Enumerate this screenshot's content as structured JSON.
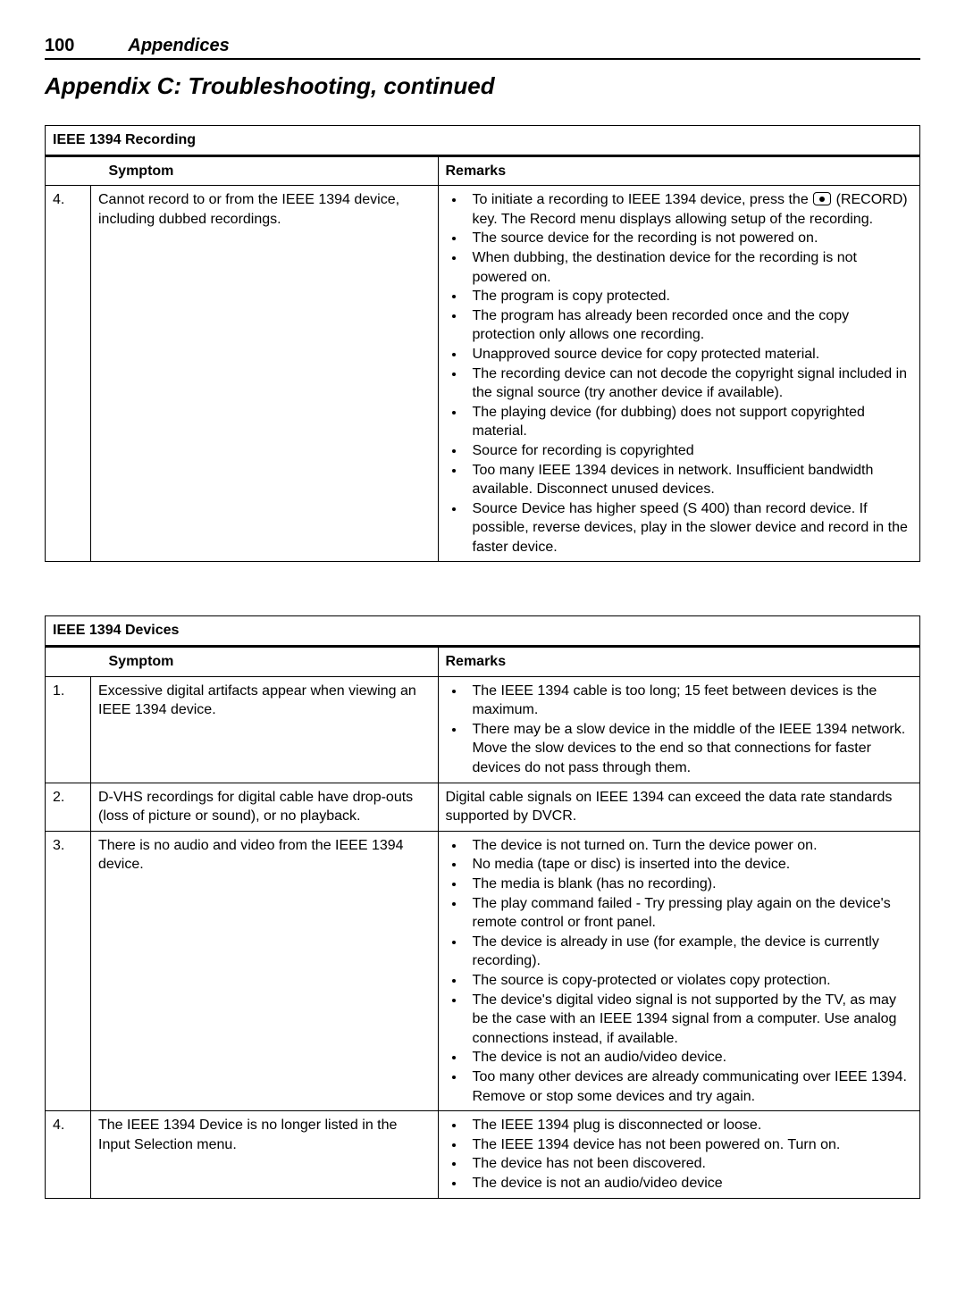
{
  "header": {
    "page_number": "100",
    "section": "Appendices"
  },
  "title": "Appendix C:   Troubleshooting, continued",
  "tables": [
    {
      "caption": "IEEE 1394 Recording",
      "col_symptom": "Symptom",
      "col_remarks": "Remarks",
      "rows": [
        {
          "num": "4.",
          "symptom": "Cannot record to or from the IEEE 1394 device, including dubbed recordings.",
          "remarks_pre_icon": "To initiate a recording to IEEE 1394 device, press the ",
          "remarks_post_icon": " (RECORD) key.  The Record menu displays allowing setup of the recording.",
          "remarks_rest": [
            "The source device for the recording is not powered on.",
            "When dubbing, the destination device for the recording is not powered on.",
            "The program is copy protected.",
            "The program has already been recorded once and the copy protection only allows one recording.",
            "Unapproved source device for copy protected material.",
            "The recording device can not decode the copyright signal included in the signal source (try another device if available).",
            "The playing device (for dubbing) does not support copy­righted material.",
            "Source for recording is copyrighted",
            "Too many IEEE 1394 devices in network. Insufficient band­width available.  Disconnect unused devices.",
            "Source Device has higher speed (S 400) than record device. If possible, reverse devices, play in the slower device and record in the faster device."
          ]
        }
      ]
    },
    {
      "caption": "IEEE 1394 Devices",
      "col_symptom": "Symptom",
      "col_remarks": "Remarks",
      "rows": [
        {
          "num": "1.",
          "symptom": "Excessive digital artifacts appear when viewing an IEEE 1394 device.",
          "remarks": [
            "The IEEE 1394 cable is too long; 15 feet between devices is the maximum.",
            "There may be a slow device in the middle of the IEEE 1394 network.  Move the slow devices to the end so that connec­tions for faster devices do not pass through them."
          ]
        },
        {
          "num": "2.",
          "symptom": "D-VHS recordings for digital cable have drop-outs (loss of picture or sound), or no playback.",
          "remarks_plain": "Digital cable signals on IEEE 1394 can exceed the data rate stan­dards supported by DVCR."
        },
        {
          "num": "3.",
          "symptom": "There is no audio and video from the IEEE 1394 device.",
          "remarks": [
            "The device is not turned on.  Turn the device power on.",
            "No media (tape or disc) is inserted into the device.",
            "The media is blank (has no recording).",
            "The play command failed - Try pressing play again on the device's remote control or front panel.",
            "The device is already in use (for example, the device is cur­rently recording).",
            "The source is copy-protected or violates copy protection.",
            "The device's digital video signal is not supported by the TV, as may be the case with an IEEE 1394 signal from a com­puter.  Use analog connections instead, if available.",
            "The device is not an audio/video device.",
            "Too many other devices are already communicating over IEEE 1394.  Remove or stop some devices and try again."
          ]
        },
        {
          "num": "4.",
          "symptom": "The IEEE 1394 Device is no longer listed in the Input Selection menu.",
          "remarks": [
            "The IEEE 1394 plug is disconnected or loose.",
            "The IEEE 1394 device has not been powered on.  Turn on.",
            "The device has not been discovered.",
            "The device is not an audio/video device"
          ]
        }
      ]
    }
  ]
}
